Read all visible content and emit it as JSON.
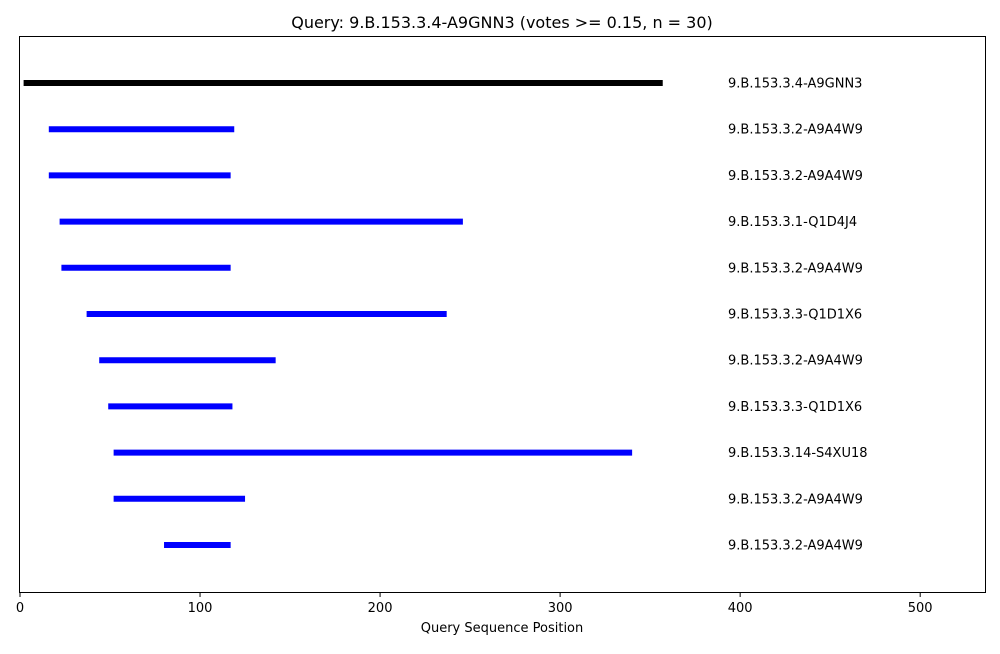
{
  "chart_data": {
    "type": "bar",
    "title": "Query: 9.B.153.3.4-A9GNN3 (votes >= 0.15, n = 30)",
    "xlabel": "Query Sequence Position",
    "ylabel": "",
    "xlim": [
      0,
      536
    ],
    "xticks": [
      0,
      100,
      200,
      300,
      400,
      500
    ],
    "grid": false,
    "legend": "none",
    "query_color": "#000000",
    "hit_color": "#0000ff",
    "series": [
      {
        "label": "9.B.153.3.4-A9GNN3",
        "start": 2,
        "end": 357,
        "kind": "query"
      },
      {
        "label": "9.B.153.3.2-A9A4W9",
        "start": 16,
        "end": 119,
        "kind": "hit"
      },
      {
        "label": "9.B.153.3.2-A9A4W9",
        "start": 16,
        "end": 117,
        "kind": "hit"
      },
      {
        "label": "9.B.153.3.1-Q1D4J4",
        "start": 22,
        "end": 246,
        "kind": "hit"
      },
      {
        "label": "9.B.153.3.2-A9A4W9",
        "start": 23,
        "end": 117,
        "kind": "hit"
      },
      {
        "label": "9.B.153.3.3-Q1D1X6",
        "start": 37,
        "end": 237,
        "kind": "hit"
      },
      {
        "label": "9.B.153.3.2-A9A4W9",
        "start": 44,
        "end": 142,
        "kind": "hit"
      },
      {
        "label": "9.B.153.3.3-Q1D1X6",
        "start": 49,
        "end": 118,
        "kind": "hit"
      },
      {
        "label": "9.B.153.3.14-S4XU18",
        "start": 52,
        "end": 340,
        "kind": "hit"
      },
      {
        "label": "9.B.153.3.2-A9A4W9",
        "start": 52,
        "end": 125,
        "kind": "hit"
      },
      {
        "label": "9.B.153.3.2-A9A4W9",
        "start": 80,
        "end": 117,
        "kind": "hit"
      }
    ]
  }
}
